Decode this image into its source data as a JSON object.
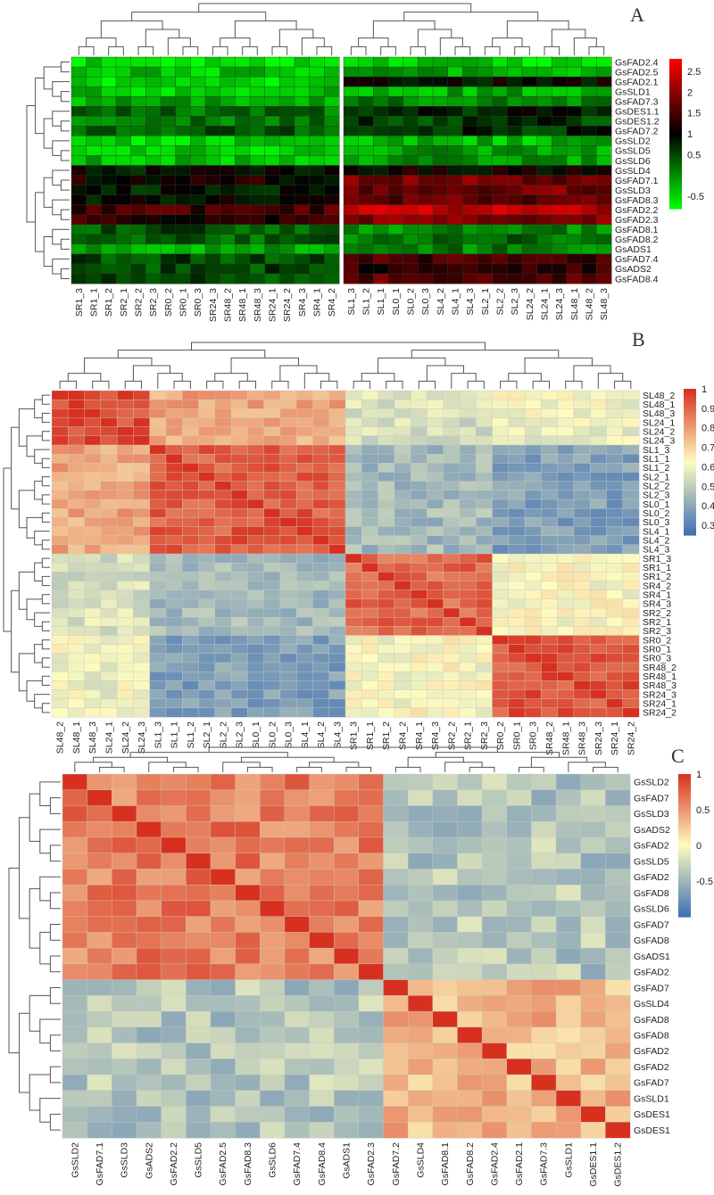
{
  "figure": {
    "panels": [
      {
        "id": "A",
        "letter": "A"
      },
      {
        "id": "B",
        "letter": "B"
      },
      {
        "id": "C",
        "letter": "C"
      }
    ]
  },
  "chart_data": [
    {
      "type": "heatmap",
      "panel": "A",
      "rows": [
        "GsFAD2.4",
        "GsFAD2.5",
        "GsFAD2.1",
        "GsSLD1",
        "GsFAD7.3",
        "GsDES1.1",
        "GsDES1.2",
        "GsFAD7.2",
        "GsSLD2",
        "GsSLD5",
        "GsSLD6",
        "GsSLD4",
        "GsFAD7.1",
        "GsSLD3",
        "GsFAD8.3",
        "GsFAD2.2",
        "GsFAD2.3",
        "GsFAD8.1",
        "GsFAD8.2",
        "GsADS1",
        "GsFAD7.4",
        "GsADS2",
        "GsFAD8.4"
      ],
      "columns": [
        "SR1_3",
        "SR1_1",
        "SR1_2",
        "SR2_1",
        "SR2_2",
        "SR2_3",
        "SR0_2",
        "SR0_1",
        "SR0_3",
        "SR24_3",
        "SR48_2",
        "SR48_1",
        "SR48_3",
        "SR24_1",
        "SR24_2",
        "SR4_3",
        "SR4_1",
        "SR4_2",
        "SL1_3",
        "SL1_2",
        "SL1_1",
        "SL0_1",
        "SL0_2",
        "SL0_3",
        "SL4_2",
        "SL4_1",
        "SL4_3",
        "SL2_1",
        "SL2_2",
        "SL2_3",
        "SL24_2",
        "SL24_1",
        "SL24_3",
        "SL48_1",
        "SL48_2",
        "SL48_3"
      ],
      "row_base": [
        -0.6,
        -0.4,
        -0.6,
        -0.4,
        -0.2,
        0.2,
        0.2,
        0.4,
        -0.5,
        -0.4,
        -0.3,
        0.9,
        1.1,
        0.8,
        0.9,
        1.5,
        1.3,
        0.4,
        0.3,
        -0.2,
        0.5,
        0.5,
        0.5
      ],
      "row_delta": [
        0.1,
        0.2,
        1.5,
        0.2,
        0.3,
        0.6,
        0.4,
        0.3,
        0.2,
        0.3,
        0.2,
        0.2,
        0.7,
        1.0,
        0.8,
        0.8,
        0.6,
        -0.4,
        -0.1,
        0.3,
        1.0,
        0.8,
        1.1
      ],
      "scale": {
        "min": -0.8,
        "max": 2.8,
        "ticks": [
          2.5,
          2,
          1.5,
          1,
          0.5,
          -0.5
        ],
        "colors": [
          "#00ff00",
          "#000000",
          "#ff0000"
        ]
      }
    },
    {
      "type": "heatmap",
      "panel": "B",
      "rows": [
        "SL48_2",
        "SL48_1",
        "SL48_3",
        "SL24_1",
        "SL24_2",
        "SL24_3",
        "SL1_3",
        "SL1_1",
        "SL1_2",
        "SL2_1",
        "SL2_2",
        "SL2_3",
        "SL0_1",
        "SL0_2",
        "SL0_3",
        "SL4_1",
        "SL4_2",
        "SL4_3",
        "SR1_3",
        "SR1_1",
        "SR1_2",
        "SR4_2",
        "SR4_1",
        "SR4_3",
        "SR2_2",
        "SR2_1",
        "SR2_3",
        "SR0_2",
        "SR0_1",
        "SR0_3",
        "SR48_2",
        "SR48_1",
        "SR48_3",
        "SR24_3",
        "SR24_1",
        "SR24_2"
      ],
      "columns": [
        "SL48_2",
        "SL48_1",
        "SL48_3",
        "SL24_1",
        "SL24_2",
        "SL24_3",
        "SL1_3",
        "SL1_1",
        "SL1_2",
        "SL2_1",
        "SL2_2",
        "SL2_3",
        "SL0_1",
        "SL0_2",
        "SL0_3",
        "SL4_1",
        "SL4_2",
        "SL4_3",
        "SR1_3",
        "SR1_1",
        "SR1_2",
        "SR4_2",
        "SR4_1",
        "SR4_3",
        "SR2_2",
        "SR2_1",
        "SR2_3",
        "SR0_2",
        "SR0_1",
        "SR0_3",
        "SR48_2",
        "SR48_1",
        "SR48_3",
        "SR24_3",
        "SR24_1",
        "SR24_2"
      ],
      "blocks": [
        18,
        18
      ],
      "groups": [
        6,
        12,
        9,
        9
      ],
      "group_values": [
        [
          0.95,
          0.78,
          0.55,
          0.6
        ],
        [
          0.78,
          0.92,
          0.45,
          0.38
        ],
        [
          0.55,
          0.45,
          0.9,
          0.62
        ],
        [
          0.6,
          0.38,
          0.62,
          0.93
        ]
      ],
      "scale": {
        "min": 0.25,
        "max": 1.0,
        "ticks": [
          1,
          0.9,
          0.8,
          0.7,
          0.6,
          0.5,
          0.4,
          0.3
        ],
        "colors": [
          "#3f6fb3",
          "#fefcbf",
          "#d7301f"
        ]
      }
    },
    {
      "type": "heatmap",
      "panel": "C",
      "rows": [
        "GsSLD2",
        "GsFAD7",
        "GsSLD3",
        "GsADS2",
        "GsFAD2",
        "GsSLD5",
        "GsFAD2",
        "GsFAD8",
        "GsSLD6",
        "GsFAD7",
        "GsFAD8",
        "GsADS1",
        "GsFAD2",
        "GsFAD7",
        "GsSLD4",
        "GsFAD8",
        "GsFAD8",
        "GsFAD2",
        "GsFAD2",
        "GsFAD7",
        "GsSLD1",
        "GsDES1",
        "GsDES1"
      ],
      "columns": [
        "GsSLD2",
        "GsFAD7.1",
        "GsSLD3",
        "GsADS2",
        "GsFAD2.2",
        "GsSLD5",
        "GsFAD2.5",
        "GsFAD8.3",
        "GsSLD6",
        "GsFAD7.4",
        "GsFAD8.4",
        "GsADS1",
        "GsFAD2.3",
        "GsFAD7.2",
        "GsSLD4",
        "GsFAD8.1",
        "GsFAD8.2",
        "GsFAD2.4",
        "GsFAD2.1",
        "GsFAD7.3",
        "GsSLD1",
        "GsDES1.1",
        "GsDES1.2"
      ],
      "blocks": [
        13,
        10
      ],
      "block_values": [
        [
          0.62,
          -0.38
        ],
        [
          -0.38,
          0.35
        ]
      ],
      "scale": {
        "min": -1.0,
        "max": 1.0,
        "ticks": [
          1,
          0.5,
          0,
          -0.5
        ],
        "colors": [
          "#3f6fb3",
          "#fefcbf",
          "#d7301f"
        ]
      }
    }
  ]
}
